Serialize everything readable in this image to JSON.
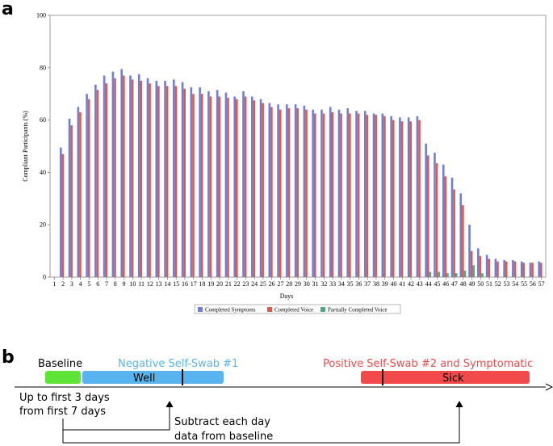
{
  "panels": {
    "a": "a",
    "b": "b"
  },
  "chart_data": {
    "type": "bar",
    "xlabel": "Days",
    "ylabel": "Compliant Participants (%)",
    "ylim": [
      0,
      100
    ],
    "yticks": [
      0,
      20,
      40,
      60,
      80,
      100
    ],
    "grid": false,
    "legend_position": "bottom-center",
    "categories": [
      1,
      2,
      3,
      4,
      5,
      6,
      7,
      8,
      9,
      10,
      11,
      12,
      13,
      14,
      15,
      16,
      17,
      18,
      19,
      20,
      21,
      22,
      23,
      24,
      25,
      26,
      27,
      28,
      29,
      30,
      31,
      32,
      33,
      34,
      35,
      36,
      37,
      38,
      39,
      40,
      41,
      42,
      43,
      44,
      45,
      46,
      47,
      48,
      49,
      50,
      51,
      52,
      53,
      54,
      55,
      56,
      57
    ],
    "series": [
      {
        "name": "Completed Symptoms",
        "color": "#6f7fd9",
        "values": [
          0,
          49.5,
          60.5,
          65,
          70,
          73.5,
          77,
          78.5,
          79.5,
          77,
          77.5,
          76,
          75,
          75,
          75.5,
          74.5,
          72.5,
          72.5,
          71,
          71.5,
          70.5,
          69,
          71,
          69,
          68,
          66.5,
          66,
          66,
          66,
          65.5,
          64,
          64,
          65,
          64,
          64.5,
          63.5,
          63.5,
          62.5,
          62.5,
          61.5,
          61,
          61,
          61.5,
          51,
          47.5,
          43,
          38,
          32,
          20,
          11,
          8.5,
          7,
          6.5,
          6.5,
          6,
          5.5,
          6
        ]
      },
      {
        "name": "Completed Voice",
        "color": "#de5a4c",
        "values": [
          0,
          47,
          58,
          63,
          68,
          71.5,
          74,
          76,
          77,
          75.5,
          75,
          74,
          73,
          73,
          73,
          72,
          70,
          70,
          69,
          69,
          68.5,
          68,
          69,
          67.5,
          66.5,
          65,
          64,
          64.5,
          64.5,
          64,
          62.5,
          62.5,
          63,
          62.5,
          62.5,
          62.5,
          62,
          62,
          61.5,
          60,
          59.5,
          59.5,
          60,
          46.5,
          43.5,
          38.5,
          33.5,
          27.5,
          10,
          8,
          7,
          6,
          6,
          6,
          5.5,
          5.5,
          5.5
        ]
      },
      {
        "name": "Partially Completed Voice",
        "color": "#4caa83",
        "values": [
          0,
          0,
          0,
          0,
          0,
          0,
          0,
          0,
          0,
          0,
          0,
          0,
          0,
          0,
          0,
          0,
          0,
          0,
          0,
          0,
          0,
          0,
          0,
          0,
          0,
          0,
          0,
          0,
          0,
          0,
          0,
          0,
          0,
          0,
          0,
          0,
          0,
          0,
          0,
          0,
          0,
          0,
          0,
          2,
          2,
          1.5,
          1.5,
          2.5,
          4.5,
          1.5,
          0,
          0,
          0,
          0,
          0,
          0,
          0
        ]
      }
    ]
  },
  "timeline": {
    "baseline_label": "Baseline",
    "negative_label": "Negative Self-Swab #1",
    "positive_label": "Positive Self-Swab #2 and Symptomatic",
    "well_label": "Well",
    "sick_label": "Sick",
    "note_left_line1": "Up to first 3 days",
    "note_left_line2": "from first 7 days",
    "note_mid_line1": "Subtract each day",
    "note_mid_line2": "data from baseline",
    "colors": {
      "baseline": "#5ee436",
      "well": "#58b4ee",
      "sick": "#f24a4a",
      "negative_text": "#58b4ee",
      "positive_text": "#f24a4a"
    }
  }
}
